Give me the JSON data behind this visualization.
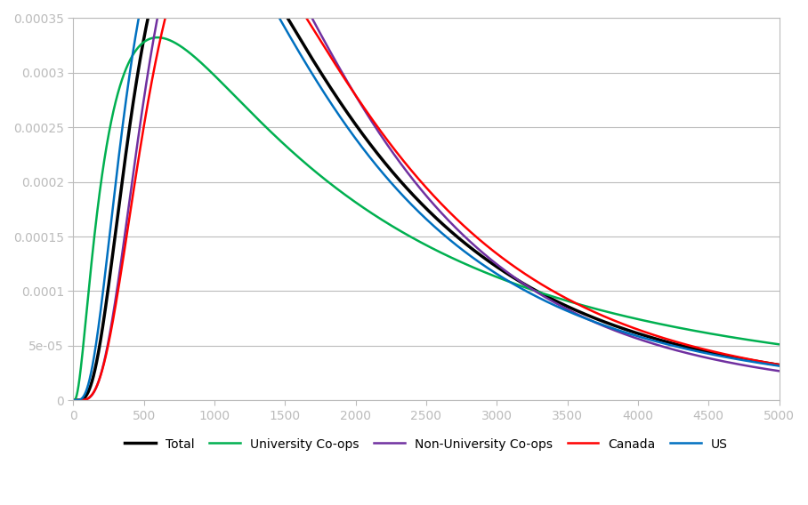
{
  "series": [
    {
      "label": "Total",
      "color": "#000000",
      "linewidth": 2.5,
      "mu": 7.36,
      "sigma": 0.75
    },
    {
      "label": "University Co-ops",
      "color": "#00B050",
      "linewidth": 1.8,
      "mu": 7.6,
      "sigma": 1.1
    },
    {
      "label": "Non-University Co-ops",
      "color": "#7030A0",
      "linewidth": 1.8,
      "mu": 7.36,
      "sigma": 0.67
    },
    {
      "label": "Canada",
      "color": "#FF0000",
      "linewidth": 1.8,
      "mu": 7.42,
      "sigma": 0.69
    },
    {
      "label": "US",
      "color": "#0070C0",
      "linewidth": 1.8,
      "mu": 7.32,
      "sigma": 0.78
    }
  ],
  "xlim": [
    0,
    5000
  ],
  "ylim": [
    0,
    0.00037
  ],
  "ylim_display": [
    0,
    0.00035
  ],
  "yticks": [
    0,
    5e-05,
    0.0001,
    0.00015,
    0.0002,
    0.00025,
    0.0003,
    0.00035
  ],
  "xticks": [
    0,
    500,
    1000,
    1500,
    2000,
    2500,
    3000,
    3500,
    4000,
    4500,
    5000
  ],
  "background_color": "#FFFFFF",
  "grid_color": "#BBBBBB",
  "legend_ncol": 5,
  "tick_label_color": "#00AACC"
}
